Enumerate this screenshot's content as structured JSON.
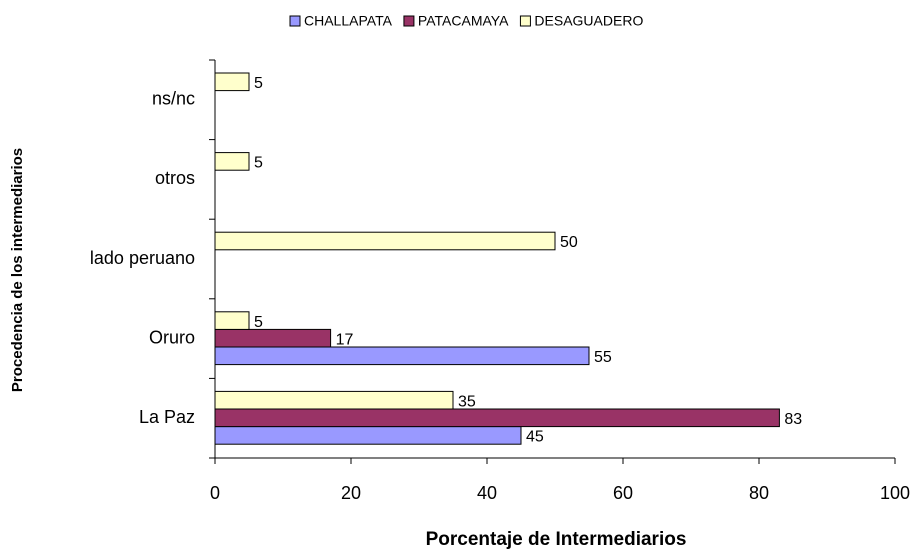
{
  "chart_data": {
    "type": "bar",
    "orientation": "horizontal",
    "xlabel": "Porcentaje de Intermediarios",
    "ylabel": "Procedencia de los intermediarios",
    "categories": [
      "La Paz",
      "Oruro",
      "lado peruano",
      "otros",
      "ns/nc"
    ],
    "series": [
      {
        "name": "CHALLAPATA",
        "color": "#9999ff",
        "values": [
          45,
          55,
          null,
          null,
          null
        ]
      },
      {
        "name": "PATACAMAYA",
        "color": "#993366",
        "values": [
          83,
          17,
          null,
          null,
          null
        ]
      },
      {
        "name": "DESAGUADERO",
        "color": "#ffffcc",
        "values": [
          35,
          5,
          50,
          5,
          5
        ]
      }
    ],
    "xlim": [
      0,
      100
    ],
    "xticks": [
      0,
      20,
      40,
      60,
      80,
      100
    ],
    "legend": "top",
    "grid": false
  }
}
